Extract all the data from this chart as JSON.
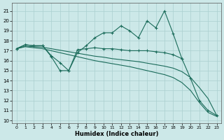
{
  "xlabel": "Humidex (Indice chaleur)",
  "background_color": "#cce8e8",
  "grid_color": "#aacfcf",
  "line_color": "#1a6b5a",
  "xlim": [
    -0.5,
    23.5
  ],
  "ylim": [
    9.7,
    21.8
  ],
  "yticks": [
    10,
    11,
    12,
    13,
    14,
    15,
    16,
    17,
    18,
    19,
    20,
    21
  ],
  "xticks": [
    0,
    1,
    2,
    3,
    4,
    5,
    6,
    7,
    8,
    9,
    10,
    11,
    12,
    13,
    14,
    15,
    16,
    17,
    18,
    19,
    20,
    21,
    22,
    23
  ],
  "series1_x": [
    0,
    1,
    2,
    3,
    4,
    5,
    6,
    7,
    8,
    9,
    10,
    11,
    12,
    13,
    14,
    15,
    16,
    17,
    18,
    19,
    20,
    21,
    22,
    23
  ],
  "series1_y": [
    17.2,
    17.6,
    17.5,
    17.5,
    16.4,
    15.0,
    15.0,
    16.8,
    17.5,
    18.3,
    18.8,
    18.8,
    19.5,
    19.0,
    18.3,
    20.0,
    19.3,
    21.0,
    18.7,
    16.2,
    14.2,
    12.0,
    11.0,
    10.5
  ],
  "series2_x": [
    0,
    1,
    2,
    3,
    4,
    5,
    6,
    7,
    8,
    9,
    10,
    11,
    12,
    13,
    14,
    15,
    16,
    17,
    18,
    19
  ],
  "series2_y": [
    17.2,
    17.6,
    17.5,
    17.5,
    16.5,
    15.8,
    15.0,
    17.1,
    17.2,
    17.3,
    17.2,
    17.2,
    17.1,
    17.0,
    17.0,
    17.0,
    16.9,
    16.8,
    16.6,
    16.2
  ],
  "series3_x": [
    0,
    1,
    2,
    3,
    4,
    5,
    6,
    7,
    8,
    9,
    10,
    11,
    12,
    13,
    14,
    15,
    16,
    17,
    18,
    19,
    20,
    21,
    22,
    23
  ],
  "series3_y": [
    17.2,
    17.45,
    17.4,
    17.35,
    17.2,
    17.05,
    16.9,
    16.75,
    16.6,
    16.45,
    16.35,
    16.2,
    16.1,
    16.0,
    15.9,
    15.75,
    15.6,
    15.45,
    15.25,
    14.9,
    14.3,
    13.3,
    12.2,
    10.5
  ],
  "series4_x": [
    0,
    1,
    2,
    3,
    4,
    5,
    6,
    7,
    8,
    9,
    10,
    11,
    12,
    13,
    14,
    15,
    16,
    17,
    18,
    19,
    20,
    21,
    22,
    23
  ],
  "series4_y": [
    17.2,
    17.4,
    17.3,
    17.2,
    17.0,
    16.8,
    16.6,
    16.4,
    16.2,
    16.0,
    15.85,
    15.7,
    15.55,
    15.4,
    15.2,
    15.0,
    14.8,
    14.6,
    14.3,
    13.8,
    13.0,
    11.8,
    10.8,
    10.4
  ]
}
